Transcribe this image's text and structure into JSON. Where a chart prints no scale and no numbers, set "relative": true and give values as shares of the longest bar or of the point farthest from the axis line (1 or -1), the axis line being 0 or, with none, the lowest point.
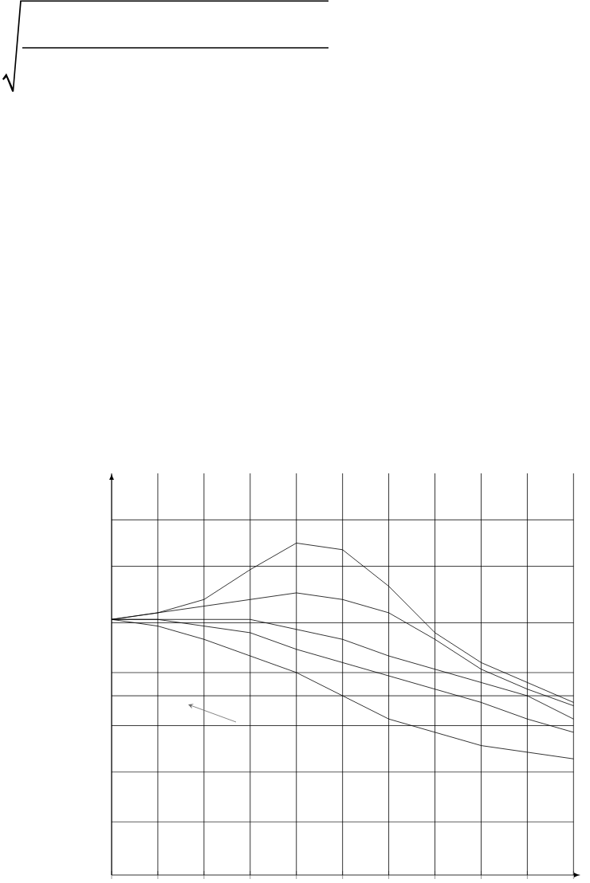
{
  "chart_data": {
    "type": "line",
    "relative": true,
    "categories": [
      null,
      null,
      null,
      null,
      null,
      null,
      null,
      null,
      null,
      null,
      null
    ],
    "series": [
      {
        "color": "#000000",
        "values": [
          0.77,
          0.79,
          0.83,
          0.92,
          1.0,
          0.98,
          0.87,
          0.73,
          0.64,
          0.58,
          0.52
        ]
      },
      {
        "color": "#000000",
        "values": [
          0.77,
          0.79,
          0.81,
          0.83,
          0.85,
          0.83,
          0.79,
          0.71,
          0.62,
          0.56,
          0.51
        ]
      },
      {
        "color": "#000000",
        "values": [
          0.77,
          0.77,
          0.77,
          0.77,
          0.74,
          0.71,
          0.66,
          0.62,
          0.58,
          0.54,
          0.47
        ]
      },
      {
        "color": "#000000",
        "values": [
          0.77,
          0.77,
          0.75,
          0.73,
          0.68,
          0.64,
          0.6,
          0.56,
          0.52,
          0.47,
          0.43
        ]
      },
      {
        "color": "#000000",
        "values": [
          0.77,
          0.75,
          0.71,
          0.66,
          0.61,
          0.54,
          0.47,
          0.43,
          0.39,
          0.37,
          0.35
        ]
      }
    ],
    "ref_lines": [
      {
        "axis": "y",
        "value": 1.07
      },
      {
        "axis": "y",
        "value": 0.93
      },
      {
        "axis": "y",
        "value": 0.76
      },
      {
        "axis": "y",
        "value": 0.61
      },
      {
        "axis": "y",
        "value": 0.54
      },
      {
        "axis": "y",
        "value": 0.45
      },
      {
        "axis": "y",
        "value": 0.31
      },
      {
        "axis": "y",
        "value": 0.16
      }
    ],
    "grid": "x"
  }
}
